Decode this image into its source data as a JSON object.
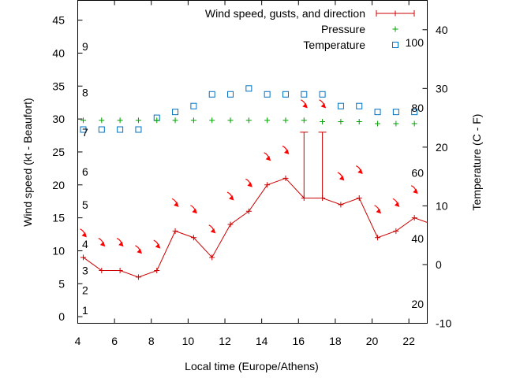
{
  "chart_data": {
    "type": "line",
    "xlabel": "Local time (Europe/Athens)",
    "ylabel": "Wind speed (kt - Beaufort)",
    "y2label": "Temperature (C - F)",
    "xlim": [
      4,
      23
    ],
    "ylim": [
      -1,
      48
    ],
    "y2lim": [
      -10,
      45
    ],
    "x_ticks": [
      4,
      6,
      8,
      10,
      12,
      14,
      16,
      18,
      20,
      22
    ],
    "y_ticks": [
      0,
      5,
      10,
      15,
      20,
      25,
      30,
      35,
      40,
      45
    ],
    "y2_ticks": [
      -10,
      0,
      10,
      20,
      30,
      40
    ],
    "beaufort_labels": [
      {
        "label": "1",
        "y": 1
      },
      {
        "label": "2",
        "y": 4
      },
      {
        "label": "3",
        "y": 7
      },
      {
        "label": "4",
        "y": 11
      },
      {
        "label": "5",
        "y": 17
      },
      {
        "label": "6",
        "y": 22
      },
      {
        "label": "7",
        "y": 28
      },
      {
        "label": "8",
        "y": 34
      },
      {
        "label": "9",
        "y": 41
      }
    ],
    "fahrenheit_labels": [
      {
        "label": "20",
        "c": -6.7
      },
      {
        "label": "40",
        "c": 4.4
      },
      {
        "label": "60",
        "c": 15.6
      },
      {
        "label": "80",
        "c": 26.7
      },
      {
        "label": "100",
        "c": 37.8
      }
    ],
    "legend": {
      "placement": "top-right",
      "entries": [
        "Wind speed, gusts, and direction",
        "Pressure",
        "Temperature"
      ]
    },
    "colors": {
      "wind": "#cc0000",
      "pressure": "#00a000",
      "temperature": "#0070c0",
      "direction_arrow": "#ff0000"
    },
    "series": [
      {
        "name": "Wind speed, gusts, and direction",
        "x": [
          4.3,
          5.3,
          6.3,
          7.3,
          8.3,
          9.3,
          10.3,
          11.3,
          12.3,
          13.3,
          14.3,
          15.3,
          16.3,
          17.3,
          18.3,
          19.3,
          20.3,
          21.3,
          22.3,
          23
        ],
        "y": [
          9,
          7,
          7,
          6,
          7,
          13,
          12,
          9,
          14,
          16,
          20,
          21,
          18,
          18,
          17,
          18,
          12,
          13,
          15,
          14.3
        ],
        "gusts": [
          {
            "x": 16.3,
            "low": 18,
            "high": 28
          },
          {
            "x": 17.3,
            "low": 18,
            "high": 28
          }
        ],
        "direction_arrows": [
          {
            "x": 4.3,
            "y": 12.7
          },
          {
            "x": 5.3,
            "y": 11.3
          },
          {
            "x": 6.3,
            "y": 11.3
          },
          {
            "x": 7.3,
            "y": 10.2
          },
          {
            "x": 8.3,
            "y": 11.0
          },
          {
            "x": 9.3,
            "y": 17.3
          },
          {
            "x": 10.3,
            "y": 16.3
          },
          {
            "x": 11.3,
            "y": 13.3
          },
          {
            "x": 12.3,
            "y": 18.3
          },
          {
            "x": 13.3,
            "y": 20.3
          },
          {
            "x": 14.3,
            "y": 24.3
          },
          {
            "x": 15.3,
            "y": 25.3
          },
          {
            "x": 16.3,
            "y": 32.3
          },
          {
            "x": 17.3,
            "y": 32.3
          },
          {
            "x": 18.3,
            "y": 21.3
          },
          {
            "x": 19.3,
            "y": 22.3
          },
          {
            "x": 20.3,
            "y": 16.3
          },
          {
            "x": 21.3,
            "y": 17.3
          },
          {
            "x": 22.3,
            "y": 19.3
          }
        ]
      },
      {
        "name": "Pressure",
        "x": [
          4.3,
          5.3,
          6.3,
          7.3,
          8.3,
          9.3,
          10.3,
          11.3,
          12.3,
          13.3,
          14.3,
          15.3,
          16.3,
          17.3,
          18.3,
          19.3,
          20.3,
          21.3,
          22.3
        ],
        "y": [
          29.8,
          29.8,
          29.8,
          29.8,
          29.8,
          29.8,
          29.8,
          29.8,
          29.8,
          29.8,
          29.8,
          29.8,
          29.8,
          29.6,
          29.6,
          29.6,
          29.3,
          29.3,
          29.3
        ]
      },
      {
        "name": "Temperature",
        "axis": "y2",
        "x": [
          4.3,
          5.3,
          6.3,
          7.3,
          8.3,
          9.3,
          10.3,
          11.3,
          12.3,
          13.3,
          14.3,
          15.3,
          16.3,
          17.3,
          18.3,
          19.3,
          20.3,
          21.3,
          22.3
        ],
        "y": [
          23,
          23,
          23,
          23,
          25,
          26,
          27,
          29,
          29,
          30,
          29,
          29,
          29,
          29,
          27,
          27,
          26,
          26,
          26
        ]
      }
    ]
  }
}
